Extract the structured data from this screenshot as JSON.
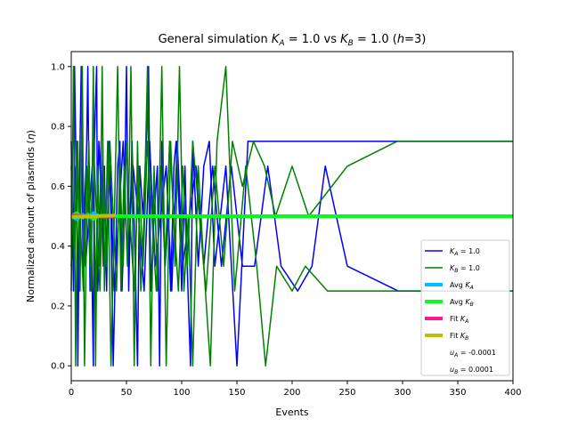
{
  "chart_data": {
    "type": "line",
    "title": "General simulation K_A = 1.0 vs K_B = 1.0 (h=3)",
    "xlabel": "Events",
    "ylabel": "Normalized amount of plasmids (η)",
    "xlim": [
      0,
      400
    ],
    "ylim": [
      -0.05,
      1.05
    ],
    "xticks": [
      0,
      50,
      100,
      150,
      200,
      250,
      300,
      350,
      400
    ],
    "yticks": [
      0.0,
      0.2,
      0.4,
      0.6,
      0.8,
      1.0
    ],
    "xtick_labels": [
      "0",
      "50",
      "100",
      "150",
      "200",
      "250",
      "300",
      "350",
      "400"
    ],
    "ytick_labels": [
      "0.0",
      "0.2",
      "0.4",
      "0.6",
      "0.8",
      "1.0"
    ],
    "grid": false,
    "legend_position": "lower-right",
    "legend": [
      {
        "label": "K_A = 1.0",
        "color": "#0000ff",
        "style": "thin"
      },
      {
        "label": "K_B = 1.0",
        "color": "#008000",
        "style": "thin"
      },
      {
        "label": "Avg K_A",
        "color": "#00bfff",
        "style": "thick"
      },
      {
        "label": "Avg K_B",
        "color": "#00ff1a",
        "style": "thick"
      },
      {
        "label": "Fit K_A",
        "color": "#ff1493",
        "style": "thick"
      },
      {
        "label": "Fit K_B",
        "color": "#bfbf00",
        "style": "thick"
      },
      {
        "label": "u_A = -0.0001",
        "color": "none",
        "style": "none"
      },
      {
        "label": "u_B = 0.0001",
        "color": "none",
        "style": "none"
      }
    ],
    "series": [
      {
        "name": "K_A = 1.0",
        "color": "#0000ff",
        "x": [
          0,
          2,
          3,
          5,
          6,
          8,
          9,
          11,
          12,
          14,
          15,
          17,
          18,
          20,
          21,
          23,
          24,
          26,
          27,
          29,
          30,
          32,
          34,
          36,
          38,
          40,
          42,
          44,
          46,
          48,
          50,
          52,
          55,
          58,
          60,
          62,
          65,
          68,
          70,
          72,
          75,
          78,
          80,
          82,
          85,
          88,
          90,
          93,
          95,
          98,
          100,
          103,
          105,
          108,
          110,
          115,
          120,
          125,
          130,
          140,
          150,
          160,
          176,
          190,
          212,
          232,
          400
        ],
        "y": [
          0.75,
          0.25,
          1.0,
          0.5,
          0.0,
          0.75,
          1.0,
          0.25,
          0.5,
          0.75,
          1.0,
          0.25,
          0.5,
          0.0,
          0.75,
          1.0,
          0.25,
          0.5,
          0.75,
          0.333,
          0.667,
          0.25,
          0.75,
          0.5,
          0.0,
          0.333,
          0.667,
          0.75,
          0.25,
          0.5,
          1.0,
          0.25,
          0.75,
          0.333,
          0.0,
          0.667,
          0.5,
          0.75,
          1.0,
          0.25,
          0.5,
          0.667,
          0.0,
          0.75,
          0.333,
          0.5,
          0.25,
          0.667,
          0.75,
          0.5,
          0.25,
          0.667,
          0.333,
          0.0,
          0.75,
          0.333,
          0.667,
          0.75,
          0.333,
          0.667,
          0.0,
          0.75,
          0.75,
          0.75,
          0.75,
          0.75,
          0.75
        ]
      },
      {
        "name": "K_A = 1.0",
        "color": "#0000ff",
        "x": [
          0,
          4,
          7,
          10,
          13,
          16,
          19,
          22,
          25,
          28,
          31,
          35,
          39,
          43,
          47,
          51,
          56,
          61,
          66,
          71,
          76,
          81,
          86,
          91,
          96,
          101,
          107,
          113,
          120,
          128,
          136,
          145,
          155,
          166,
          178,
          190,
          205,
          218,
          230,
          250,
          296,
          400
        ],
        "y": [
          0.333,
          0.667,
          0.25,
          0.75,
          0.333,
          0.5,
          0.667,
          0.25,
          0.75,
          0.5,
          0.333,
          0.667,
          0.25,
          0.5,
          0.75,
          0.333,
          0.667,
          0.5,
          0.25,
          0.75,
          0.333,
          0.5,
          0.667,
          0.25,
          0.75,
          0.333,
          0.5,
          0.667,
          0.333,
          0.667,
          0.333,
          0.667,
          0.333,
          0.333,
          0.667,
          0.333,
          0.25,
          0.333,
          0.667,
          0.333,
          0.25,
          0.25
        ]
      },
      {
        "name": "K_B = 1.0",
        "color": "#008000",
        "x": [
          0,
          2,
          4,
          6,
          8,
          10,
          12,
          14,
          16,
          18,
          20,
          22,
          24,
          26,
          28,
          30,
          33,
          36,
          39,
          42,
          45,
          48,
          51,
          54,
          57,
          60,
          63,
          66,
          69,
          72,
          75,
          78,
          82,
          86,
          90,
          94,
          98,
          102,
          106,
          110,
          115,
          120,
          126,
          132,
          140,
          148,
          158,
          168,
          176,
          186,
          200,
          212,
          232,
          400
        ],
        "y": [
          0.25,
          1.0,
          0.0,
          0.75,
          0.25,
          1.0,
          0.0,
          0.5,
          0.75,
          0.25,
          1.0,
          0.0,
          0.667,
          0.333,
          1.0,
          0.25,
          0.75,
          0.0,
          0.5,
          1.0,
          0.25,
          0.667,
          0.333,
          1.0,
          0.0,
          0.75,
          0.25,
          0.5,
          1.0,
          0.0,
          0.667,
          0.25,
          1.0,
          0.0,
          0.75,
          0.333,
          1.0,
          0.25,
          0.5,
          0.0,
          0.667,
          0.333,
          0.0,
          0.75,
          1.0,
          0.25,
          0.667,
          0.333,
          0.0,
          0.333,
          0.25,
          0.333,
          0.25,
          0.25
        ]
      },
      {
        "name": "K_B = 1.0",
        "color": "#008000",
        "x": [
          0,
          3,
          5,
          8,
          11,
          14,
          17,
          20,
          23,
          26,
          29,
          32,
          35,
          38,
          41,
          44,
          47,
          50,
          53,
          57,
          61,
          65,
          69,
          73,
          77,
          81,
          85,
          89,
          93,
          97,
          101,
          105,
          110,
          116,
          122,
          130,
          138,
          146,
          155,
          165,
          175,
          185,
          200,
          215,
          250,
          295,
          400
        ],
        "y": [
          0.667,
          0.333,
          0.75,
          0.5,
          0.25,
          0.667,
          0.333,
          0.75,
          0.5,
          0.25,
          0.667,
          0.333,
          0.75,
          0.5,
          0.25,
          0.667,
          0.333,
          0.75,
          0.5,
          0.25,
          0.667,
          0.333,
          0.75,
          0.5,
          0.25,
          0.667,
          0.333,
          0.75,
          0.5,
          0.25,
          0.667,
          0.333,
          0.75,
          0.5,
          0.25,
          0.667,
          0.333,
          0.75,
          0.6,
          0.75,
          0.667,
          0.5,
          0.667,
          0.5,
          0.667,
          0.75,
          0.75
        ]
      },
      {
        "name": "Avg K_A",
        "color": "#00bfff",
        "x": [
          0,
          5,
          10,
          15,
          20,
          25,
          30,
          35,
          40,
          400
        ],
        "y": [
          0.5,
          0.49,
          0.505,
          0.495,
          0.51,
          0.5,
          0.498,
          0.502,
          0.5,
          0.5
        ]
      },
      {
        "name": "Avg K_B",
        "color": "#00ff1a",
        "x": [
          0,
          5,
          10,
          15,
          20,
          25,
          30,
          35,
          40,
          400
        ],
        "y": [
          0.5,
          0.51,
          0.495,
          0.505,
          0.49,
          0.5,
          0.502,
          0.498,
          0.5,
          0.5
        ]
      },
      {
        "name": "Fit K_A",
        "color": "#ff1493",
        "x": [
          0,
          40
        ],
        "y": [
          0.502,
          0.498
        ]
      },
      {
        "name": "Fit K_B",
        "color": "#bfbf00",
        "x": [
          0,
          40
        ],
        "y": [
          0.498,
          0.502
        ]
      }
    ]
  }
}
